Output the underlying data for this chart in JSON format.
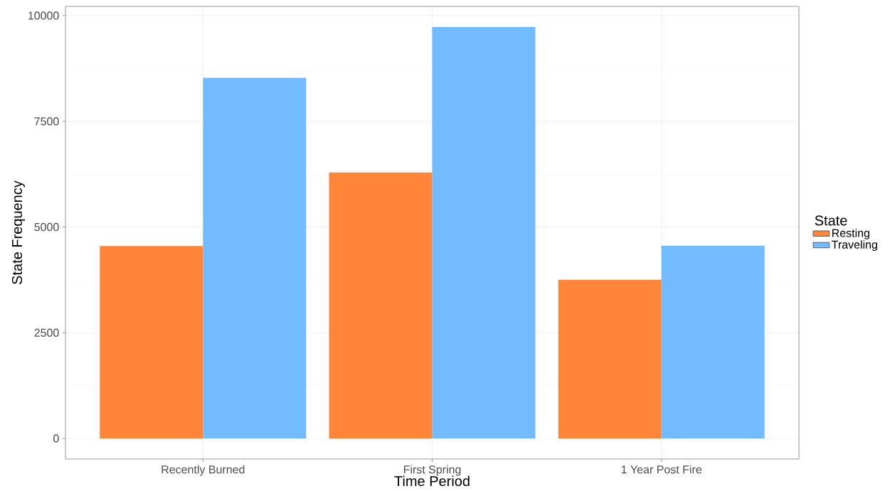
{
  "chart_data": {
    "type": "bar",
    "xlabel": "Time Period",
    "ylabel": "State Frequency",
    "legend_title": "State",
    "categories": [
      "Recently Burned",
      "First Spring",
      "1 Year Post Fire"
    ],
    "series": [
      {
        "name": "Resting",
        "color": "#ff8539",
        "values": [
          4550,
          6290,
          3750
        ]
      },
      {
        "name": "Traveling",
        "color": "#73bbff",
        "values": [
          8530,
          9730,
          4560
        ]
      }
    ],
    "ylim": [
      -487,
      10218
    ],
    "yticks": [
      0,
      2500,
      5000,
      7500,
      10000
    ],
    "grid": true,
    "legend": "right"
  }
}
